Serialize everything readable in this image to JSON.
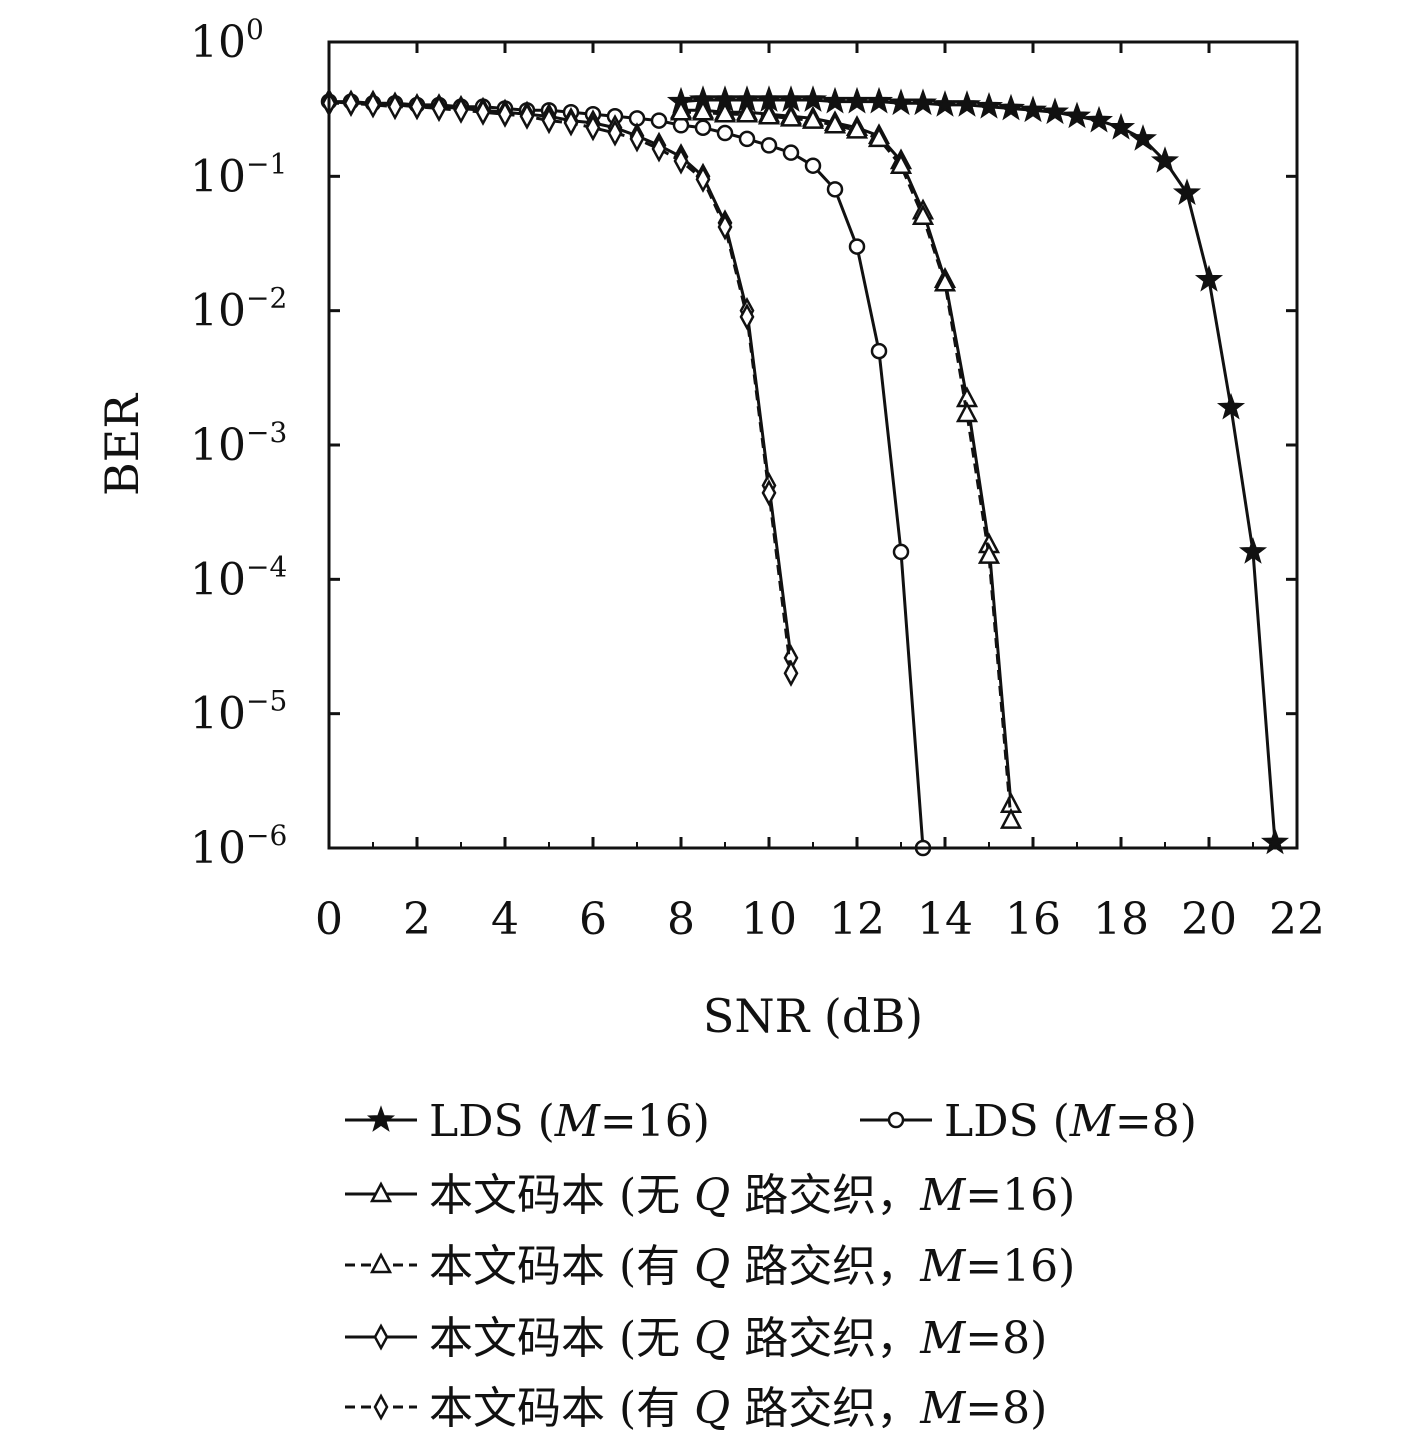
{
  "chart_data": {
    "type": "line",
    "xlabel": "SNR (dB)",
    "ylabel": "BER",
    "xlim": [
      0,
      22
    ],
    "ylim": [
      1e-06,
      1
    ],
    "yscale": "log",
    "grid": false,
    "legend_position": "bottom",
    "x_ticks": [
      "0",
      "2",
      "4",
      "6",
      "8",
      "10",
      "12",
      "14",
      "16",
      "18",
      "20",
      "22"
    ],
    "y_ticks": [
      {
        "base": "10",
        "exp": "0"
      },
      {
        "base": "10",
        "exp": "−1"
      },
      {
        "base": "10",
        "exp": "−2"
      },
      {
        "base": "10",
        "exp": "−3"
      },
      {
        "base": "10",
        "exp": "−4"
      },
      {
        "base": "10",
        "exp": "−5"
      },
      {
        "base": "10",
        "exp": "−6"
      }
    ],
    "series": [
      {
        "name": "LDS (M=16)",
        "legend_parts": [
          "LDS (",
          "M",
          "=16)"
        ],
        "marker": "star",
        "dash": false,
        "x": [
          8,
          8.5,
          9,
          9.5,
          10,
          10.5,
          11,
          11.5,
          12,
          12.5,
          13,
          13.5,
          14,
          14.5,
          15,
          15.5,
          16,
          16.5,
          17,
          17.5,
          18,
          18.5,
          19,
          19.5,
          20,
          20.5,
          21,
          21.5
        ],
        "y": [
          0.36,
          0.37,
          0.37,
          0.37,
          0.37,
          0.37,
          0.37,
          0.36,
          0.36,
          0.36,
          0.35,
          0.35,
          0.34,
          0.34,
          0.33,
          0.32,
          0.31,
          0.3,
          0.28,
          0.26,
          0.23,
          0.19,
          0.13,
          0.075,
          0.017,
          0.0019,
          0.00016,
          1.1e-06
        ]
      },
      {
        "name": "LDS (M=8)",
        "legend_parts": [
          "LDS (",
          "M",
          "=8)"
        ],
        "marker": "circle",
        "dash": false,
        "x": [
          0,
          0.5,
          1,
          1.5,
          2,
          2.5,
          3,
          3.5,
          4,
          4.5,
          5,
          5.5,
          6,
          6.5,
          7,
          7.5,
          8,
          8.5,
          9,
          9.5,
          10,
          10.5,
          11,
          11.5,
          12,
          12.5,
          13,
          13.5
        ],
        "y": [
          0.36,
          0.36,
          0.35,
          0.35,
          0.34,
          0.34,
          0.33,
          0.33,
          0.32,
          0.31,
          0.31,
          0.3,
          0.29,
          0.28,
          0.27,
          0.26,
          0.24,
          0.23,
          0.21,
          0.19,
          0.17,
          0.15,
          0.12,
          0.08,
          0.03,
          0.005,
          0.00016,
          1e-06
        ]
      },
      {
        "name": "本文码本 (无 Q 路交织，M=16)",
        "legend_parts": [
          "本文码本 (无 ",
          "Q",
          " 路交织，",
          "M",
          "=16)"
        ],
        "marker": "triangle",
        "dash": false,
        "x": [
          8,
          8.5,
          9,
          9.5,
          10,
          10.5,
          11,
          11.5,
          12,
          12.5,
          13,
          13.5,
          14,
          14.5,
          15,
          15.5
        ],
        "y": [
          0.31,
          0.31,
          0.3,
          0.3,
          0.29,
          0.28,
          0.27,
          0.25,
          0.23,
          0.2,
          0.13,
          0.055,
          0.017,
          0.0022,
          0.00018,
          2.1e-06
        ]
      },
      {
        "name": "本文码本 (有 Q 路交织，M=16)",
        "legend_parts": [
          "本文码本 (有 ",
          "Q",
          " 路交织，",
          "M",
          "=16)"
        ],
        "marker": "triangle",
        "dash": true,
        "x": [
          8,
          8.5,
          9,
          9.5,
          10,
          10.5,
          11,
          11.5,
          12,
          12.5,
          13,
          13.5,
          14,
          14.5,
          15,
          15.5
        ],
        "y": [
          0.3,
          0.3,
          0.29,
          0.29,
          0.28,
          0.27,
          0.26,
          0.24,
          0.22,
          0.19,
          0.12,
          0.05,
          0.016,
          0.0017,
          0.00015,
          1.6e-06
        ]
      },
      {
        "name": "本文码本 (无 Q 路交织，M=8)",
        "legend_parts": [
          "本文码本 (无 ",
          "Q",
          " 路交织，",
          "M",
          "=8)"
        ],
        "marker": "diamond",
        "dash": false,
        "x": [
          0,
          0.5,
          1,
          1.5,
          2,
          2.5,
          3,
          3.5,
          4,
          4.5,
          5,
          5.5,
          6,
          6.5,
          7,
          7.5,
          8,
          8.5,
          9,
          9.5,
          10,
          10.5
        ],
        "y": [
          0.36,
          0.35,
          0.35,
          0.34,
          0.33,
          0.33,
          0.32,
          0.31,
          0.3,
          0.29,
          0.28,
          0.26,
          0.25,
          0.23,
          0.2,
          0.17,
          0.14,
          0.1,
          0.045,
          0.01,
          0.0005,
          2.6e-05
        ]
      },
      {
        "name": "本文码本 (有 Q 路交织，M=8)",
        "legend_parts": [
          "本文码本 (有 ",
          "Q",
          " 路交织，",
          "M",
          "=8)"
        ],
        "marker": "diamond",
        "dash": true,
        "x": [
          0,
          0.5,
          1,
          1.5,
          2,
          2.5,
          3,
          3.5,
          4,
          4.5,
          5,
          5.5,
          6,
          6.5,
          7,
          7.5,
          8,
          8.5,
          9,
          9.5,
          10,
          10.5
        ],
        "y": [
          0.35,
          0.35,
          0.34,
          0.33,
          0.33,
          0.32,
          0.31,
          0.3,
          0.29,
          0.28,
          0.26,
          0.25,
          0.23,
          0.21,
          0.19,
          0.16,
          0.13,
          0.095,
          0.042,
          0.009,
          0.00044,
          2e-05
        ]
      }
    ]
  }
}
